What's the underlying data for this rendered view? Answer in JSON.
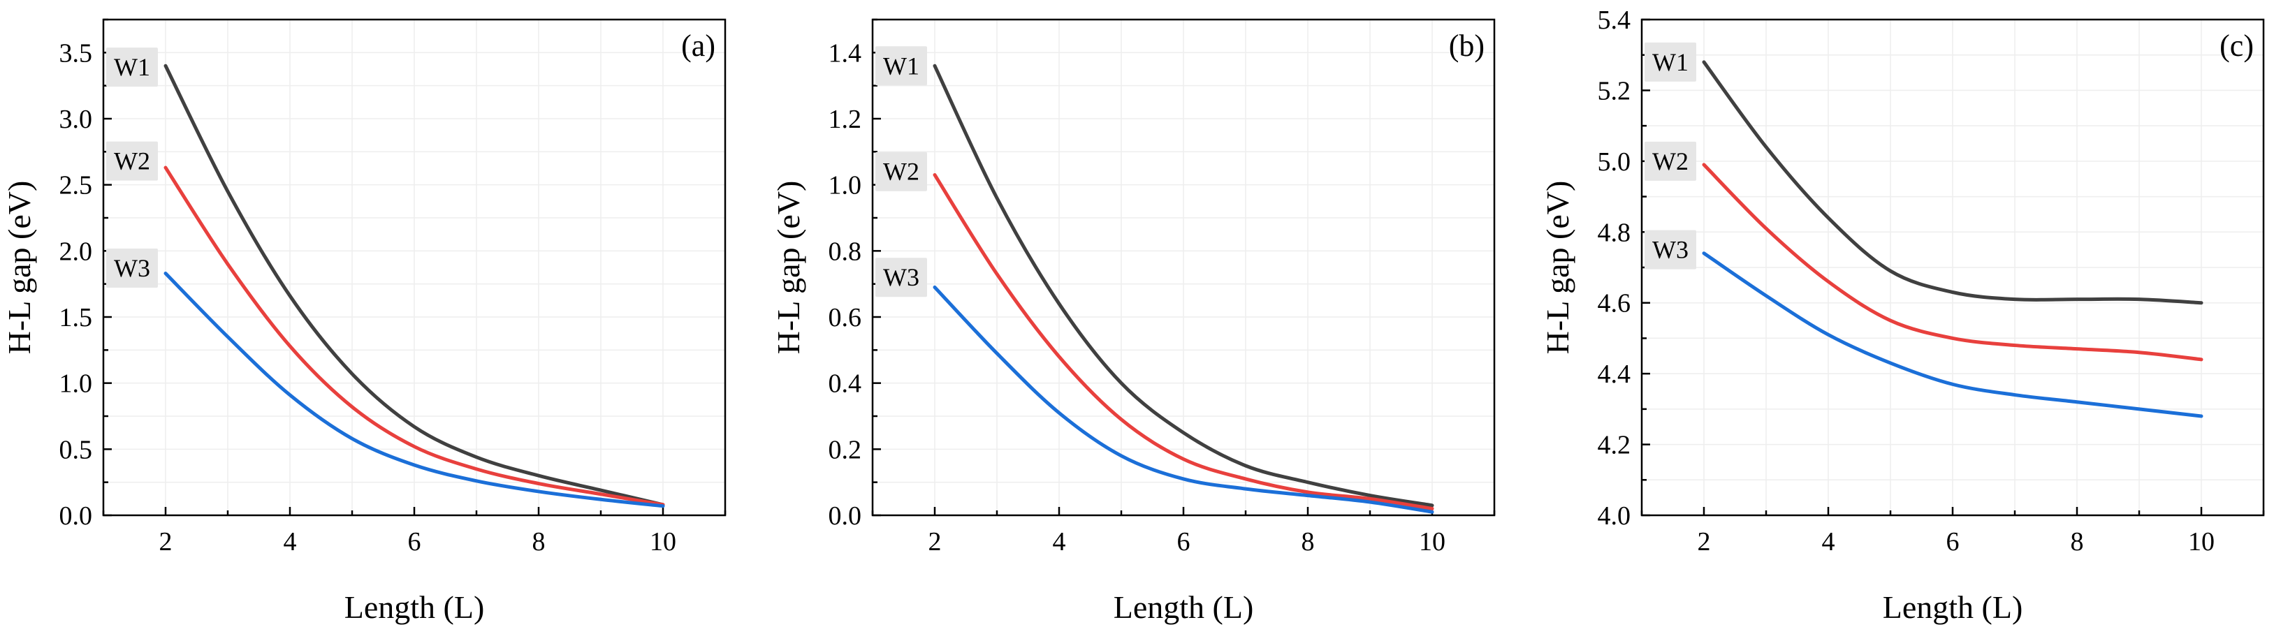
{
  "chart_data": [
    {
      "type": "line",
      "panel_label": "(a)",
      "xlabel": "Length (L)",
      "ylabel": "H-L gap (eV)",
      "xlim": [
        1,
        11
      ],
      "ylim": [
        0,
        3.75
      ],
      "xticks": [
        2,
        4,
        6,
        8,
        10
      ],
      "xtick_labels": [
        "2",
        "4",
        "6",
        "8",
        "10"
      ],
      "yticks": [
        0,
        0.5,
        1.0,
        1.5,
        2.0,
        2.5,
        3.0,
        3.5
      ],
      "ytick_labels": [
        "0.0",
        "0.5",
        "1.0",
        "1.5",
        "2.0",
        "2.5",
        "3.0",
        "3.5"
      ],
      "series": [
        {
          "name": "W1",
          "label_y": 3.39,
          "color": "#404040",
          "x": [
            2,
            3,
            4,
            5,
            6,
            7,
            8,
            9,
            10
          ],
          "y": [
            3.4,
            2.45,
            1.66,
            1.07,
            0.67,
            0.44,
            0.3,
            0.19,
            0.08
          ]
        },
        {
          "name": "W2",
          "label_y": 2.68,
          "color": "#e8403d",
          "x": [
            2,
            3,
            4,
            5,
            6,
            7,
            8,
            9,
            10
          ],
          "y": [
            2.63,
            1.9,
            1.28,
            0.82,
            0.52,
            0.35,
            0.24,
            0.16,
            0.08
          ]
        },
        {
          "name": "W3",
          "label_y": 1.87,
          "color": "#1b6fd8",
          "x": [
            2,
            3,
            4,
            5,
            6,
            7,
            8,
            9,
            10
          ],
          "y": [
            1.83,
            1.35,
            0.91,
            0.58,
            0.38,
            0.26,
            0.18,
            0.12,
            0.07
          ]
        }
      ]
    },
    {
      "type": "line",
      "panel_label": "(b)",
      "xlabel": "Length (L)",
      "ylabel": "H-L gap (eV)",
      "xlim": [
        1,
        11
      ],
      "ylim": [
        0,
        1.5
      ],
      "xticks": [
        2,
        4,
        6,
        8,
        10
      ],
      "xtick_labels": [
        "2",
        "4",
        "6",
        "8",
        "10"
      ],
      "yticks": [
        0,
        0.2,
        0.4,
        0.6,
        0.8,
        1.0,
        1.2,
        1.4
      ],
      "ytick_labels": [
        "0.0",
        "0.2",
        "0.4",
        "0.6",
        "0.8",
        "1.0",
        "1.2",
        "1.4"
      ],
      "series": [
        {
          "name": "W1",
          "label_y": 1.36,
          "color": "#404040",
          "x": [
            2,
            3,
            4,
            5,
            6,
            7,
            8,
            9,
            10
          ],
          "y": [
            1.36,
            0.96,
            0.64,
            0.4,
            0.25,
            0.15,
            0.1,
            0.06,
            0.03
          ]
        },
        {
          "name": "W2",
          "label_y": 1.04,
          "color": "#e8403d",
          "x": [
            2,
            3,
            4,
            5,
            6,
            7,
            8,
            9,
            10
          ],
          "y": [
            1.03,
            0.73,
            0.48,
            0.29,
            0.17,
            0.11,
            0.07,
            0.05,
            0.02
          ]
        },
        {
          "name": "W3",
          "label_y": 0.72,
          "color": "#1b6fd8",
          "x": [
            2,
            3,
            4,
            5,
            6,
            7,
            8,
            9,
            10
          ],
          "y": [
            0.69,
            0.49,
            0.31,
            0.18,
            0.11,
            0.08,
            0.06,
            0.04,
            0.01
          ]
        }
      ]
    },
    {
      "type": "line",
      "panel_label": "(c)",
      "xlabel": "Length (L)",
      "ylabel": "H-L gap (eV)",
      "xlim": [
        1,
        11
      ],
      "ylim": [
        4.0,
        5.4
      ],
      "xticks": [
        2,
        4,
        6,
        8,
        10
      ],
      "xtick_labels": [
        "2",
        "4",
        "6",
        "8",
        "10"
      ],
      "yticks": [
        4.0,
        4.2,
        4.4,
        4.6,
        4.8,
        5.0,
        5.2,
        5.4
      ],
      "ytick_labels": [
        "4.0",
        "4.2",
        "4.4",
        "4.6",
        "4.8",
        "5.0",
        "5.2",
        "5.4"
      ],
      "series": [
        {
          "name": "W1",
          "label_y": 5.28,
          "color": "#404040",
          "x": [
            2,
            3,
            4,
            5,
            6,
            7,
            8,
            9,
            10
          ],
          "y": [
            5.28,
            5.04,
            4.84,
            4.69,
            4.63,
            4.61,
            4.61,
            4.61,
            4.6
          ]
        },
        {
          "name": "W2",
          "label_y": 5.0,
          "color": "#e8403d",
          "x": [
            2,
            3,
            4,
            5,
            6,
            7,
            8,
            9,
            10
          ],
          "y": [
            4.99,
            4.81,
            4.66,
            4.55,
            4.5,
            4.48,
            4.47,
            4.46,
            4.44
          ]
        },
        {
          "name": "W3",
          "label_y": 4.75,
          "color": "#1b6fd8",
          "x": [
            2,
            3,
            4,
            5,
            6,
            7,
            8,
            9,
            10
          ],
          "y": [
            4.74,
            4.62,
            4.51,
            4.43,
            4.37,
            4.34,
            4.32,
            4.3,
            4.28
          ]
        }
      ]
    }
  ]
}
